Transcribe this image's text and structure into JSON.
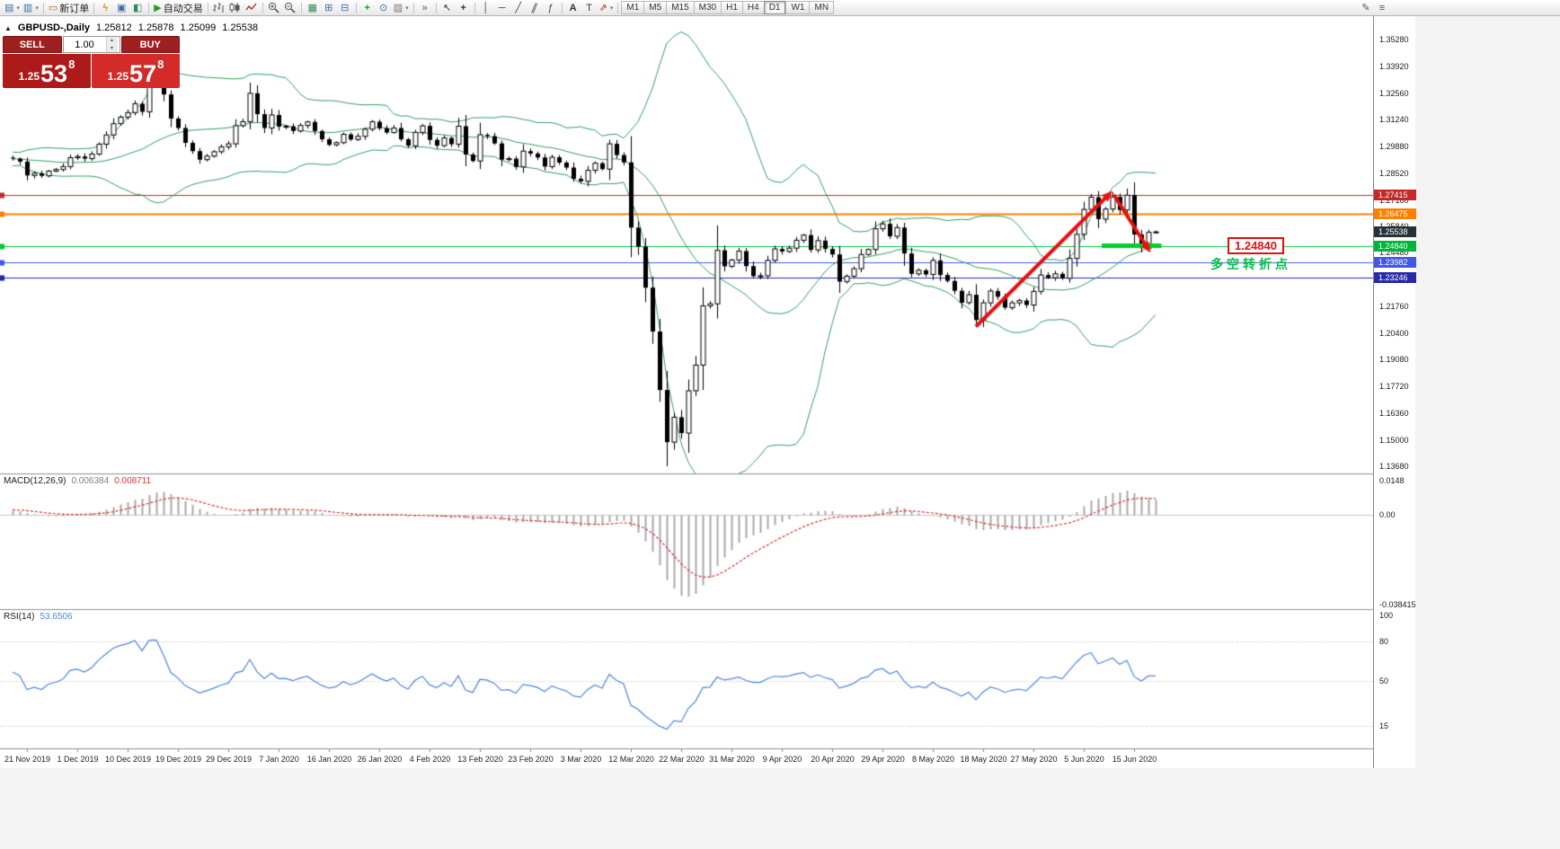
{
  "window": {
    "bg": "#f3f3f3"
  },
  "icons": {
    "dropdown": "▾",
    "spinner_up": "▴",
    "spinner_down": "▾",
    "symbol_marker": "▲"
  },
  "toolbar": {
    "new_order": "新订单",
    "autotrade": "自动交易",
    "timeframes": [
      "M1",
      "M5",
      "M15",
      "M30",
      "H1",
      "H4",
      "D1",
      "W1",
      "MN"
    ],
    "active_timeframe": "D1",
    "groups": [
      {
        "sep": true,
        "items": [
          {
            "name": "new-chart-icon",
            "glyph": "▤",
            "color": "#3a6ea5",
            "dropdown": true
          },
          {
            "name": "chart-profiles-icon",
            "glyph": "▥",
            "color": "#3a6ea5",
            "dropdown": true
          }
        ]
      },
      {
        "sep": true,
        "items": [
          {
            "name": "new-order-button",
            "glyph": "▭",
            "color": "#b85c2e",
            "label_key": "new_order"
          }
        ]
      },
      {
        "sep": true,
        "items": [
          {
            "name": "expert-advisors-icon",
            "glyph": "ϟ",
            "color": "#d69500",
            "bold": true
          },
          {
            "name": "market-watch-icon",
            "glyph": "▣",
            "color": "#3a6ea5"
          },
          {
            "name": "strategy-tester-icon",
            "glyph": "◧",
            "color": "#2e8b57"
          }
        ]
      },
      {
        "sep": true,
        "items": [
          {
            "name": "autotrade-button",
            "glyph": "▶",
            "color": "#17a317",
            "label_key": "autotrade"
          }
        ]
      },
      {
        "sep": true,
        "items": [
          {
            "name": "bar-chart-icon",
            "svg": "bars"
          },
          {
            "name": "candlestick-chart-icon",
            "svg": "candles"
          },
          {
            "name": "line-chart-icon",
            "svg": "line"
          }
        ]
      },
      {
        "sep": true,
        "items": [
          {
            "name": "zoom-in-icon",
            "svg": "zoomin"
          },
          {
            "name": "zoom-out-icon",
            "svg": "zoomout"
          }
        ]
      },
      {
        "sep": true,
        "items": [
          {
            "name": "tile-windows-icon",
            "glyph": "▦",
            "color": "#2e8b57"
          },
          {
            "name": "cascade-windows-icon",
            "glyph": "⊞",
            "color": "#3a6ea5"
          },
          {
            "name": "arrange-windows-icon",
            "glyph": "⊟",
            "color": "#3a6ea5"
          }
        ]
      },
      {
        "sep": true,
        "items": [
          {
            "name": "indicators-icon",
            "glyph": "+",
            "color": "#17a317",
            "bold": true
          },
          {
            "name": "periods-icon",
            "glyph": "⊙",
            "color": "#3a6ea5"
          },
          {
            "name": "templates-icon",
            "glyph": "▨",
            "color": "#7a7a7a",
            "dropdown": true
          }
        ]
      },
      {
        "sep": true,
        "items": [
          {
            "name": "chevron-more-icon",
            "glyph": "»",
            "color": "#555555"
          }
        ]
      },
      {
        "sep": true,
        "items": [
          {
            "name": "cursor-icon",
            "glyph": "↖",
            "color": "#333333"
          },
          {
            "name": "crosshair-icon",
            "glyph": "+",
            "color": "#333333",
            "bold": true
          }
        ]
      },
      {
        "sep": true,
        "items": [
          {
            "name": "vertical-line-icon",
            "glyph": "│",
            "color": "#444444"
          },
          {
            "name": "horizontal-line-icon",
            "glyph": "─",
            "color": "#444444"
          },
          {
            "name": "trendline-icon",
            "glyph": "╱",
            "color": "#444444"
          },
          {
            "name": "channel-icon",
            "glyph": "∥",
            "color": "#444444",
            "skew": true
          },
          {
            "name": "fibonacci-icon",
            "glyph": "ƒ",
            "color": "#444444"
          }
        ]
      },
      {
        "sep": true,
        "items": [
          {
            "name": "text-icon",
            "glyph": "A",
            "color": "#333333",
            "bold": true
          },
          {
            "name": "label-icon",
            "glyph": "T",
            "color": "#333333"
          },
          {
            "name": "arrows-tool-icon",
            "glyph": "⇗",
            "color": "#b22222",
            "dropdown": true
          }
        ]
      },
      {
        "sep": false,
        "items": [
          {
            "type": "timeframes",
            "name": "timeframe-toolbar"
          }
        ]
      },
      {
        "spacer": true
      },
      {
        "right": true,
        "items": [
          {
            "name": "quick-edit-icon",
            "glyph": "✎",
            "color": "#555555"
          },
          {
            "name": "object-list-icon",
            "glyph": "≡",
            "color": "#555555"
          }
        ]
      }
    ]
  },
  "chart": {
    "header": {
      "symbol": "GBPUSD-,Daily",
      "open": "1.25812",
      "high": "1.25878",
      "low": "1.25099",
      "close": "1.25538"
    },
    "trade_panel": {
      "sell_label": "SELL",
      "buy_label": "BUY",
      "volume": "1.00",
      "sell_price": {
        "prefix": "1.25",
        "big": "53",
        "sup": "8"
      },
      "buy_price": {
        "prefix": "1.25",
        "big": "57",
        "sup": "8"
      }
    },
    "annotations": {
      "price_label": "1.24840",
      "turning_point": "多空转折点"
    }
  },
  "macd": {
    "title": "MACD(12,26,9)",
    "value_main": "0.006384",
    "value_signal": "0.008711",
    "axis": [
      {
        "label": "0.0148",
        "value": 0.0148
      },
      {
        "label": "0.00",
        "value": 0
      },
      {
        "label": "-0.038415",
        "value": -0.038415
      }
    ]
  },
  "rsi": {
    "title": "RSI(14)",
    "value": "53.6506",
    "axis": [
      {
        "label": "100",
        "value": 100
      },
      {
        "label": "80",
        "value": 80
      },
      {
        "label": "50",
        "value": 50
      },
      {
        "label": "15",
        "value": 15
      }
    ],
    "levels": [
      80,
      50,
      15
    ]
  },
  "chart_data": {
    "type": "candlestick",
    "symbol": "GBPUSD",
    "period": "Daily",
    "x_labels": [
      "21 Nov 2019",
      "1 Dec 2019",
      "10 Dec 2019",
      "19 Dec 2019",
      "29 Dec 2019",
      "7 Jan 2020",
      "16 Jan 2020",
      "26 Jan 2020",
      "4 Feb 2020",
      "13 Feb 2020",
      "23 Feb 2020",
      "3 Mar 2020",
      "12 Mar 2020",
      "22 Mar 2020",
      "31 Mar 2020",
      "9 Apr 2020",
      "20 Apr 2020",
      "29 Apr 2020",
      "8 May 2020",
      "18 May 2020",
      "27 May 2020",
      "5 Jun 2020",
      "15 Jun 2020"
    ],
    "pre_closes": [
      1.279,
      1.2815,
      1.284,
      1.2825,
      1.285,
      1.2865,
      1.284,
      1.288,
      1.2905,
      1.288,
      1.292,
      1.2895,
      1.293,
      1.2905,
      1.2885,
      1.2915,
      1.294,
      1.292,
      1.295,
      1.293,
      1.291,
      1.2935,
      1.2955,
      1.293,
      1.2905,
      1.293,
      1.291,
      1.294,
      1.292,
      1.293
    ],
    "closes": [
      1.2925,
      1.291,
      1.284,
      1.2851,
      1.2838,
      1.2862,
      1.287,
      1.2885,
      1.293,
      1.2936,
      1.2925,
      1.2948,
      1.2998,
      1.3045,
      1.3102,
      1.3135,
      1.3158,
      1.3203,
      1.3162,
      1.3328,
      1.333,
      1.325,
      1.3128,
      1.308,
      1.3005,
      1.2963,
      1.292,
      1.2938,
      1.296,
      1.2985,
      1.3,
      1.3092,
      1.3112,
      1.3256,
      1.315,
      1.308,
      1.3146,
      1.3087,
      1.3089,
      1.3065,
      1.3093,
      1.3111,
      1.3065,
      1.3023,
      1.2995,
      1.3006,
      1.3048,
      1.3022,
      1.3038,
      1.3074,
      1.3112,
      1.3079,
      1.3057,
      1.308,
      1.3023,
      1.299,
      1.3058,
      1.3091,
      1.302,
      1.2991,
      1.303,
      1.2998,
      1.3089,
      1.2946,
      1.2913,
      1.3046,
      1.3039,
      1.3002,
      1.292,
      1.2925,
      1.2883,
      1.2963,
      1.2951,
      1.2931,
      1.2885,
      1.2932,
      1.2905,
      1.288,
      1.2823,
      1.281,
      1.2866,
      1.2902,
      1.2872,
      1.3,
      1.2943,
      1.2906,
      1.2576,
      1.248,
      1.2272,
      1.205,
      1.1754,
      1.149,
      1.1616,
      1.1536,
      1.175,
      1.188,
      1.218,
      1.219,
      1.2461,
      1.238,
      1.2412,
      1.2457,
      1.2381,
      1.233,
      1.2332,
      1.241,
      1.2468,
      1.2455,
      1.2472,
      1.2512,
      1.2538,
      1.2463,
      1.251,
      1.2468,
      1.244,
      1.2303,
      1.233,
      1.2368,
      1.244,
      1.2465,
      1.257,
      1.2595,
      1.2532,
      1.2576,
      1.2445,
      1.2342,
      1.236,
      1.2339,
      1.241,
      1.2336,
      1.2306,
      1.2256,
      1.2196,
      1.2236,
      1.2108,
      1.2195,
      1.2255,
      1.2226,
      1.2171,
      1.2195,
      1.2207,
      1.2184,
      1.2253,
      1.2336,
      1.2322,
      1.2342,
      1.2319,
      1.242,
      1.2542,
      1.2668,
      1.273,
      1.2619,
      1.267,
      1.2731,
      1.2665,
      1.274,
      1.2541,
      1.2472,
      1.2552,
      1.2554
    ],
    "y_ticks": [
      {
        "label": "1.35280",
        "value": 1.3528
      },
      {
        "label": "1.33920",
        "value": 1.3392
      },
      {
        "label": "1.32560",
        "value": 1.3256
      },
      {
        "label": "1.31240",
        "value": 1.3124
      },
      {
        "label": "1.29880",
        "value": 1.2988
      },
      {
        "label": "1.28520",
        "value": 1.2852
      },
      {
        "label": "1.27160",
        "value": 1.2716
      },
      {
        "label": "1.25840",
        "value": 1.2584
      },
      {
        "label": "1.24480",
        "value": 1.2448
      },
      {
        "label": "1.23120",
        "value": 1.2312
      },
      {
        "label": "1.21760",
        "value": 1.2176
      },
      {
        "label": "1.20400",
        "value": 1.204
      },
      {
        "label": "1.19080",
        "value": 1.1908
      },
      {
        "label": "1.17720",
        "value": 1.1772
      },
      {
        "label": "1.16360",
        "value": 1.1636
      },
      {
        "label": "1.15000",
        "value": 1.15
      },
      {
        "label": "1.13680",
        "value": 1.1368
      }
    ],
    "price_tags": [
      {
        "label": "1.27415",
        "value": 1.27415,
        "bg": "#c62828"
      },
      {
        "label": "1.26475",
        "value": 1.26475,
        "bg": "#ff8000"
      },
      {
        "label": "1.25538",
        "value": 1.25538,
        "bg": "#263238"
      },
      {
        "label": "1.24840",
        "value": 1.2484,
        "bg": "#00b43c"
      },
      {
        "label": "1.23982",
        "value": 1.23982,
        "bg": "#4057e8"
      },
      {
        "label": "1.23246",
        "value": 1.23246,
        "bg": "#2828a8"
      }
    ],
    "hlines": [
      {
        "price": 1.27415,
        "color": "#c62828",
        "width": 1
      },
      {
        "price": 1.26475,
        "color": "#ff8000",
        "width": 2
      },
      {
        "price": 1.2484,
        "color": "#00c838",
        "width": 1
      },
      {
        "price": 1.23982,
        "color": "#4057e8",
        "width": 1
      },
      {
        "price": 1.23246,
        "color": "#2828a8",
        "width": 1
      }
    ],
    "arrows": [
      {
        "from_idx": 134,
        "from_price": 1.2075,
        "to_idx": 153,
        "to_price": 1.2762,
        "color": "#e81010",
        "width": 4
      },
      {
        "from_idx": 153.2,
        "from_price": 1.2742,
        "to_idx": 158.3,
        "to_price": 1.2448,
        "color": "#e81010",
        "width": 4
      }
    ],
    "support_bar": {
      "from_idx": 151.5,
      "to_idx": 159.8,
      "price": 1.2484,
      "color": "#00d02a",
      "width": 5
    },
    "bollinger": {
      "period": 20,
      "deviation": 2,
      "color": "#35a060"
    },
    "macd_range": {
      "max": 0.0148,
      "min": -0.038415
    },
    "colors": {
      "bull": "#ffffff",
      "bear": "#000000",
      "outline": "#000000",
      "macd_hist": "#a8a8a8",
      "macd_signal": "#e03030",
      "rsi_line": "#4f86e0"
    }
  }
}
